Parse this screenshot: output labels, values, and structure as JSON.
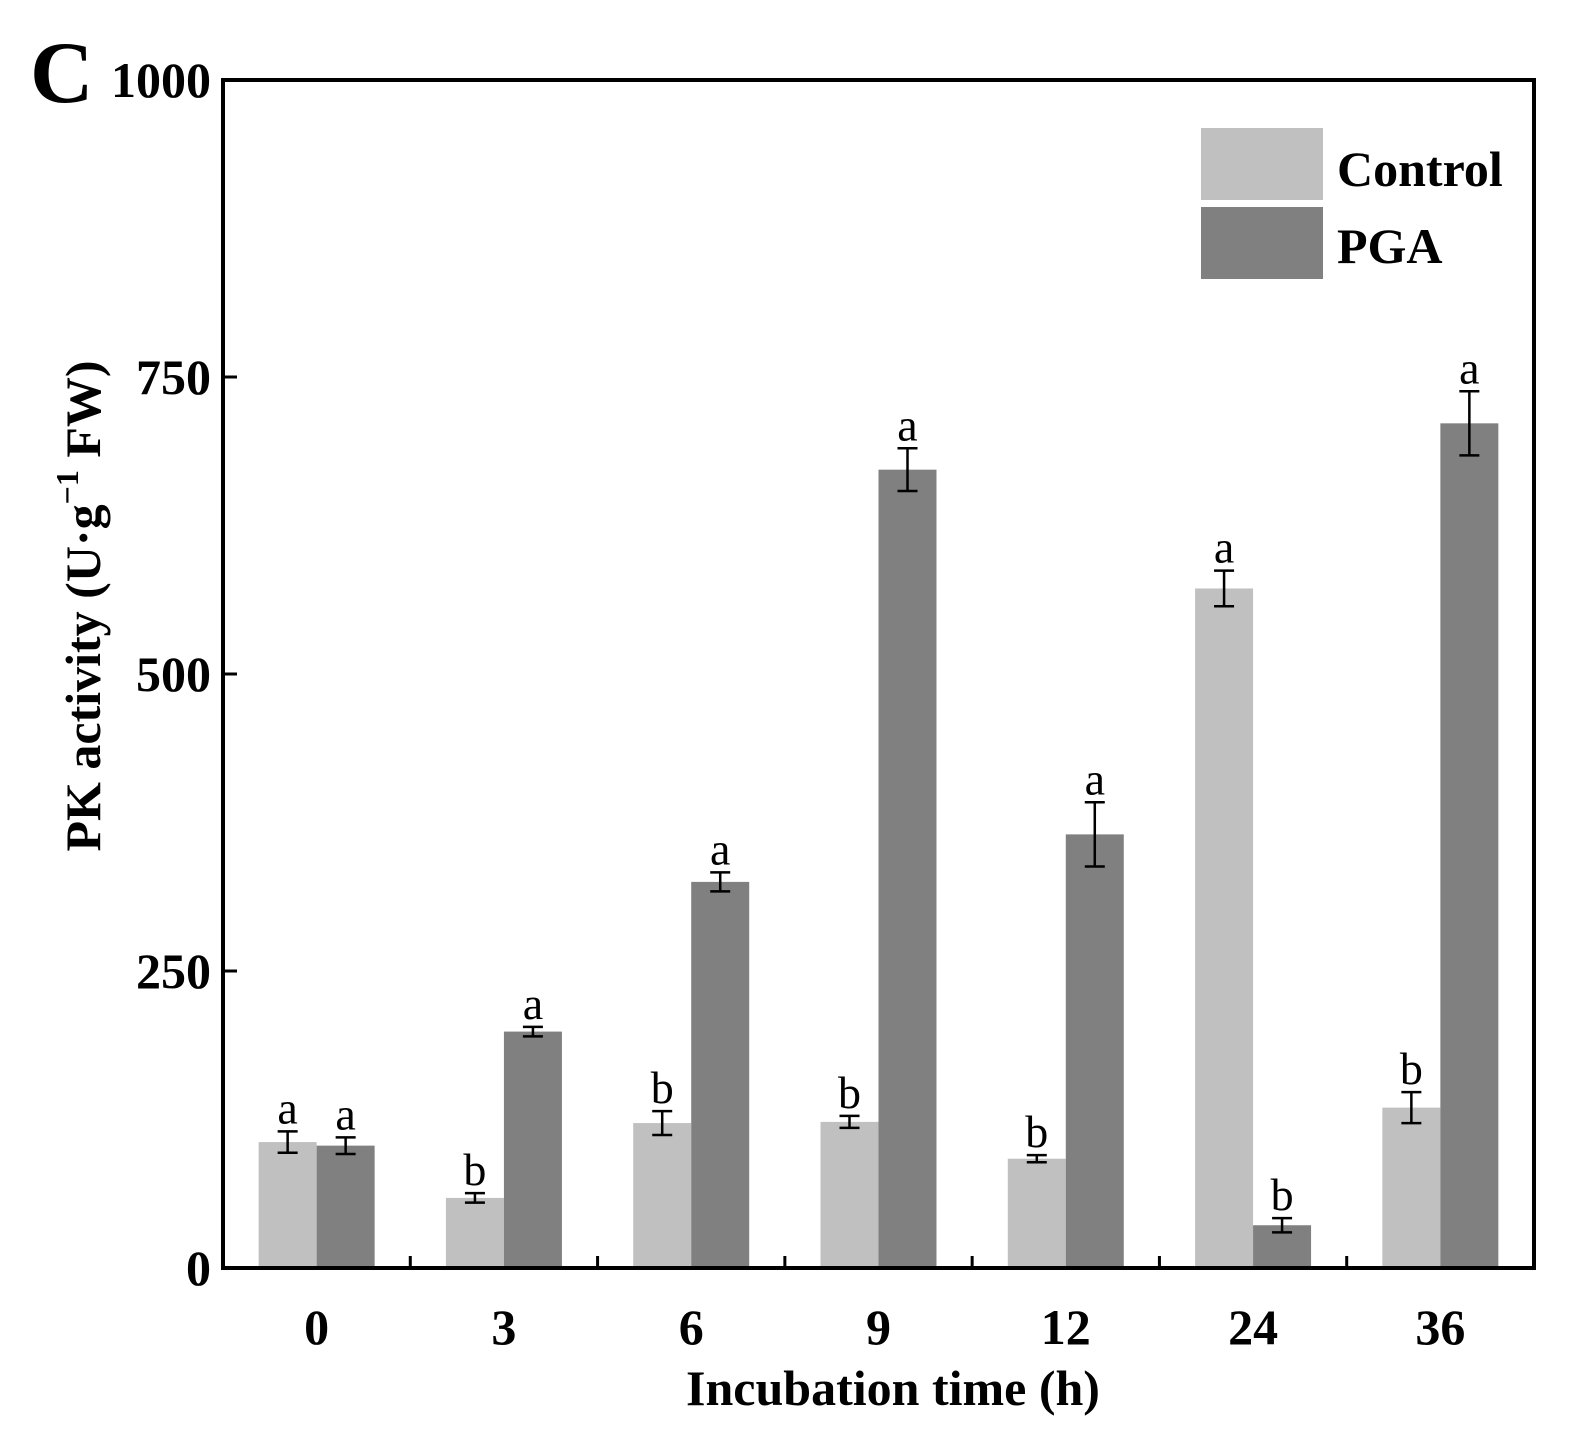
{
  "panel_label": "C",
  "chart_data": {
    "type": "bar",
    "title": "",
    "xlabel": "Incubation time (h)",
    "ylabel": "PK activity (U·g",
    "ylabel_sup": "−1",
    "ylabel_tail": " FW)",
    "categories": [
      "0",
      "3",
      "6",
      "9",
      "12",
      "24",
      "36"
    ],
    "ylim": [
      0,
      1000
    ],
    "yticks": [
      "0",
      "250",
      "500",
      "750",
      "1000"
    ],
    "legend_position": "top-right",
    "grid": false,
    "series": [
      {
        "name": "Control",
        "color": "#c0c0c0",
        "values": [
          106,
          59,
          122,
          123,
          92,
          572,
          135
        ],
        "errors": [
          9,
          4,
          10,
          5,
          3,
          15,
          13
        ],
        "letters": [
          "a",
          "b",
          "b",
          "b",
          "b",
          "a",
          "b"
        ]
      },
      {
        "name": "PGA",
        "color": "#808080",
        "values": [
          103,
          199,
          325,
          672,
          365,
          36,
          711
        ],
        "errors": [
          7,
          4,
          8,
          18,
          27,
          6,
          27
        ],
        "letters": [
          "a",
          "a",
          "a",
          "a",
          "a",
          "b",
          "a"
        ]
      }
    ]
  }
}
